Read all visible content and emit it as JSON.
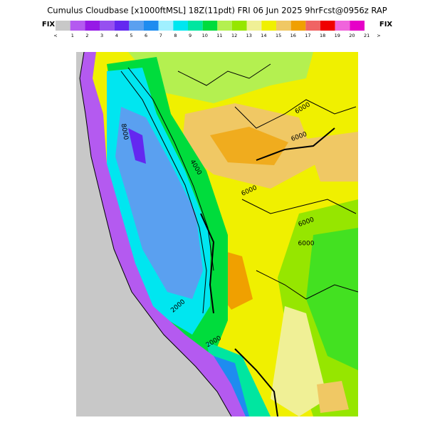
{
  "header": {
    "title": "Cumulus Cloudbase [x1000ftMSL] 18Z(11pdt) FRI 06 Jun 2025 9hrFcst@0956z RAP",
    "left": "FIX",
    "right": "FIX"
  },
  "colorbar": {
    "colors": [
      "#c8c8c8",
      "#b45af0",
      "#9619e6",
      "#9650f0",
      "#6428f0",
      "#5aa0f0",
      "#1e8cf0",
      "#a0f0ff",
      "#00e6f0",
      "#00e6a0",
      "#00dc3c",
      "#b4f050",
      "#96e600",
      "#f0f096",
      "#f0f000",
      "#f0c864",
      "#f0a000",
      "#f06464",
      "#f00000",
      "#f064dc",
      "#e600c8"
    ],
    "labels": [
      "<",
      "1",
      "2",
      "3",
      "4",
      "5",
      "6",
      "7",
      "8",
      "9",
      "10",
      "11",
      "12",
      "13",
      "14",
      "15",
      "16",
      "17",
      "18",
      "19",
      "20",
      "21",
      ">"
    ]
  },
  "map": {
    "contour_labels": [
      "6000",
      "6000",
      "6000",
      "6000",
      "6000",
      "8000",
      "4000",
      "2000",
      "2000"
    ]
  }
}
